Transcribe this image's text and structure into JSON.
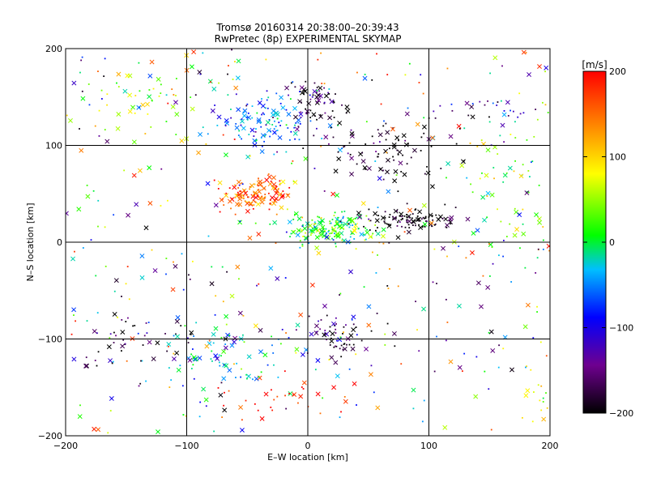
{
  "chart_data": {
    "type": "scatter",
    "title": "Tromsø 20160314 20:38:00–20:39:43",
    "subtitle": "RwPretec (8p) EXPERIMENTAL SKYMAP",
    "xlabel": "E–W location [km]",
    "ylabel": "N–S location [km]",
    "xlim": [
      -200,
      200
    ],
    "ylim": [
      -200,
      200
    ],
    "x_ticks": [
      -200,
      -100,
      0,
      100,
      200
    ],
    "y_ticks": [
      -200,
      -100,
      0,
      100,
      200
    ],
    "x_tick_labels": [
      "−200",
      "−100",
      "0",
      "100",
      "200"
    ],
    "y_tick_labels": [
      "−200",
      "−100",
      "0",
      "100",
      "200"
    ],
    "grid": true,
    "markers": [
      "x",
      "dot"
    ],
    "colorbar": {
      "label": "[m/s]",
      "min": -200,
      "max": 200,
      "ticks": [
        200,
        100,
        0,
        -100,
        -200
      ],
      "tick_labels": [
        "200",
        "100",
        "0",
        "−100",
        "−200"
      ],
      "colormap": [
        "#000000",
        "#6e008f",
        "#0000ff",
        "#00bfff",
        "#00ff00",
        "#ffff00",
        "#ff8000",
        "#ff0000"
      ]
    },
    "clusters": [
      {
        "x": -43,
        "y": 52,
        "sd": [
          14,
          9
        ],
        "v": 170,
        "n": 130
      },
      {
        "x": -35,
        "y": 125,
        "sd": [
          20,
          14
        ],
        "v": -60,
        "n": 120
      },
      {
        "x": 5,
        "y": 145,
        "sd": [
          15,
          12
        ],
        "v": -180,
        "n": 60
      },
      {
        "x": 20,
        "y": 15,
        "sd": [
          20,
          8
        ],
        "v": 10,
        "n": 170
      },
      {
        "x": 82,
        "y": 22,
        "sd": [
          18,
          6
        ],
        "v": -200,
        "n": 110
      },
      {
        "x": 65,
        "y": 95,
        "sd": [
          28,
          18
        ],
        "v": -200,
        "n": 90
      },
      {
        "x": 25,
        "y": -95,
        "sd": [
          15,
          14
        ],
        "v": -170,
        "n": 60
      },
      {
        "x": -65,
        "y": -115,
        "sd": [
          30,
          18
        ],
        "v": -40,
        "n": 80
      },
      {
        "x": -140,
        "y": -105,
        "sd": [
          30,
          18
        ],
        "v": -170,
        "n": 45
      },
      {
        "x": -20,
        "y": -160,
        "sd": [
          25,
          12
        ],
        "v": 190,
        "n": 30
      },
      {
        "x": -135,
        "y": 150,
        "sd": [
          25,
          25
        ],
        "v": 60,
        "n": 50
      },
      {
        "x": 170,
        "y": 55,
        "sd": [
          18,
          40
        ],
        "v": 40,
        "n": 50
      },
      {
        "x": 150,
        "y": 135,
        "sd": [
          25,
          10
        ],
        "v": -130,
        "n": 25
      },
      {
        "x": 190,
        "y": -150,
        "sd": [
          8,
          30
        ],
        "v": 80,
        "n": 20
      }
    ],
    "background_points": 420,
    "note": "Scatter of ~1500 colour-coded echo locations (x and dot markers); colour = line-of-sight velocity in m/s"
  }
}
